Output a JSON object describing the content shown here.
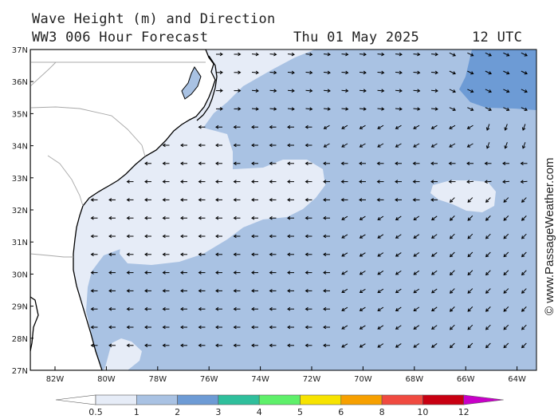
{
  "title": "Wave Height (m) and Direction",
  "model": "WW3 006 Hour Forecast",
  "valid_date": "Thu 01 May 2025",
  "valid_time": "12 UTC",
  "credit": "© www.PassageWeather.com",
  "lat_labels": [
    "37N",
    "36N",
    "35N",
    "34N",
    "33N",
    "32N",
    "31N",
    "30N",
    "29N",
    "28N",
    "27N"
  ],
  "lon_labels": [
    "82W",
    "80W",
    "78W",
    "76W",
    "74W",
    "72W",
    "70W",
    "68W",
    "66W",
    "64W"
  ],
  "colorbar": {
    "labels": [
      "0.5",
      "1",
      "2",
      "3",
      "4",
      "5",
      "6",
      "8",
      "10",
      "12"
    ],
    "colors": [
      "#e6ecf7",
      "#a9c2e3",
      "#6d9bd5",
      "#2fbf9c",
      "#5ef06a",
      "#f7e300",
      "#f7a000",
      "#f04a40",
      "#c80012",
      "#c800c8"
    ]
  },
  "colors": {
    "land": "#ffffff",
    "coast": "#000000",
    "borders": "#a8a8a8",
    "arrow": "#000000"
  }
}
